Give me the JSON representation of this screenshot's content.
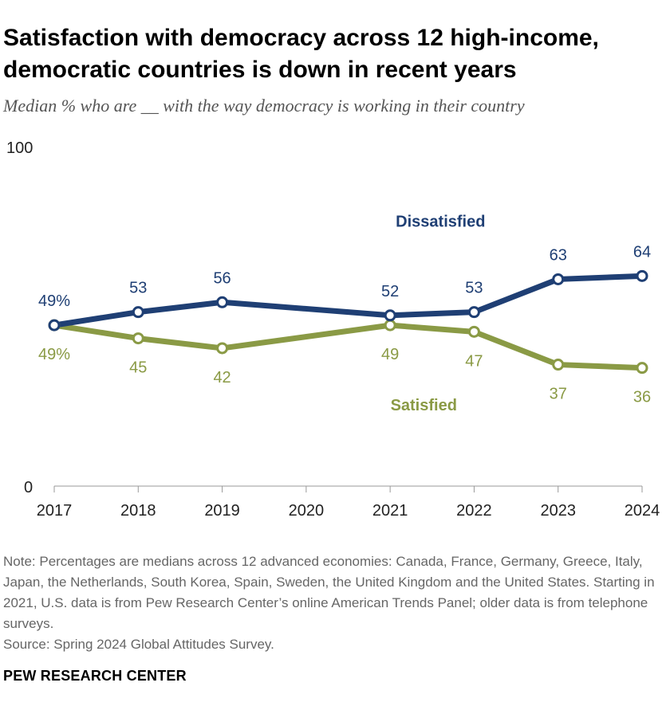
{
  "title": "Satisfaction with democracy across 12 high-income, democratic countries is down in recent years",
  "subtitle": "Median % who are __ with the way democracy is working in their country",
  "note": "Note: Percentages are medians across 12 advanced economies: Canada, France, Germany, Greece, Italy, Japan, the Netherlands, South Korea, Spain, Sweden, the United Kingdom and the United States. Starting in 2021, U.S. data is from Pew Research Center’s online American Trends Panel; older data is from telephone surveys.",
  "source": "Source: Spring 2024 Global Attitudes Survey.",
  "org": "PEW RESEARCH CENTER",
  "chart_data": {
    "type": "line",
    "x": [
      2017,
      2018,
      2019,
      2021,
      2022,
      2023,
      2024
    ],
    "x_ticks": [
      "2017",
      "2018",
      "2019",
      "2020",
      "2021",
      "2022",
      "2023",
      "2024"
    ],
    "xlim": [
      2017,
      2024
    ],
    "ylim": [
      0,
      100
    ],
    "y_tick_labels": [
      "100",
      "0"
    ],
    "series": [
      {
        "name": "Dissatisfied",
        "color": "#1f3f74",
        "values": [
          49,
          53,
          56,
          52,
          53,
          63,
          64
        ],
        "labels": [
          "49%",
          "53",
          "56",
          "52",
          "53",
          "63",
          "64"
        ],
        "label_position": "above"
      },
      {
        "name": "Satisfied",
        "color": "#8a9a45",
        "values": [
          49,
          45,
          42,
          49,
          47,
          37,
          36
        ],
        "labels": [
          "49%",
          "45",
          "42",
          "49",
          "47",
          "37",
          "36"
        ],
        "label_position": "below"
      }
    ]
  }
}
